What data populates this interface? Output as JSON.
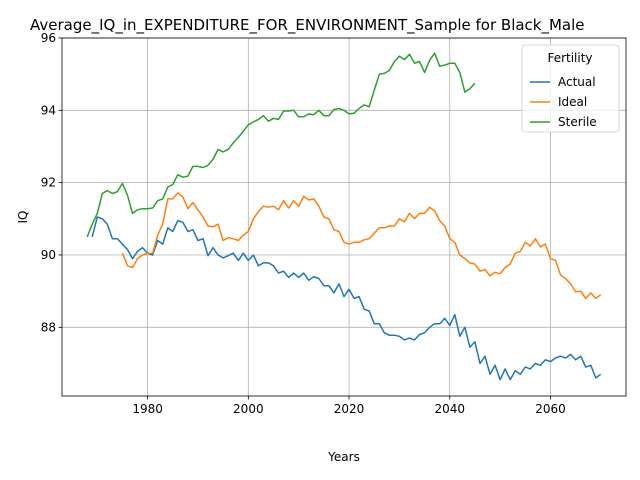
{
  "chart_data": {
    "type": "line",
    "title": "Average_IQ_in_EXPENDITURE_FOR_ENVIRONMENT_Sample for Black_Male",
    "xlabel": "Years",
    "ylabel": "IQ",
    "xlim": [
      1963,
      2075
    ],
    "ylim": [
      86.1,
      96.0
    ],
    "xticks": [
      1980,
      2000,
      2020,
      2040,
      2060
    ],
    "yticks": [
      88,
      90,
      92,
      94,
      96
    ],
    "grid": true,
    "legend": {
      "title": "Fertility",
      "position": "top-right"
    },
    "series": [
      {
        "name": "Actual",
        "color": "#1f77b4",
        "x": [
          1969,
          1970,
          1971,
          1972,
          1973,
          1974,
          1975,
          1976,
          1977,
          1978,
          1979,
          1980,
          1981,
          1982,
          1983,
          1984,
          1985,
          1986,
          1987,
          1988,
          1989,
          1990,
          1991,
          1992,
          1993,
          1994,
          1995,
          1996,
          1997,
          1998,
          1999,
          2000,
          2001,
          2002,
          2003,
          2004,
          2005,
          2006,
          2007,
          2008,
          2009,
          2010,
          2011,
          2012,
          2013,
          2014,
          2015,
          2016,
          2017,
          2018,
          2019,
          2020,
          2021,
          2022,
          2023,
          2024,
          2025,
          2026,
          2027,
          2028,
          2029,
          2030,
          2031,
          2032,
          2033,
          2034,
          2035,
          2036,
          2037,
          2038,
          2039,
          2040,
          2041,
          2042,
          2043,
          2044,
          2045,
          2046,
          2047,
          2048,
          2049,
          2050,
          2051,
          2052,
          2053,
          2054,
          2055,
          2056,
          2057,
          2058,
          2059,
          2060,
          2061,
          2062,
          2063,
          2064,
          2065,
          2066,
          2067,
          2068,
          2069,
          2070
        ],
        "values": [
          90.5,
          91.05,
          91.0,
          90.85,
          90.45,
          90.45,
          90.3,
          90.15,
          89.9,
          90.1,
          90.2,
          90.05,
          90.0,
          90.4,
          90.3,
          90.75,
          90.65,
          90.95,
          90.9,
          90.65,
          90.7,
          90.4,
          90.45,
          89.98,
          90.2,
          90.0,
          89.92,
          89.98,
          90.05,
          89.85,
          90.05,
          89.85,
          90.0,
          89.7,
          89.78,
          89.78,
          89.7,
          89.5,
          89.55,
          89.38,
          89.5,
          89.38,
          89.5,
          89.3,
          89.4,
          89.35,
          89.15,
          89.15,
          88.95,
          89.2,
          88.85,
          89.05,
          88.8,
          88.85,
          88.5,
          88.45,
          88.1,
          88.1,
          87.85,
          87.78,
          87.78,
          87.75,
          87.65,
          87.7,
          87.65,
          87.8,
          87.85,
          88.0,
          88.1,
          88.1,
          88.25,
          88.05,
          88.35,
          87.75,
          88.0,
          87.45,
          87.6,
          87.0,
          87.2,
          86.7,
          86.95,
          86.55,
          86.85,
          86.55,
          86.8,
          86.7,
          86.9,
          86.85,
          87.0,
          86.95,
          87.1,
          87.05,
          87.15,
          87.2,
          87.15,
          87.25,
          87.1,
          87.2,
          86.9,
          86.95,
          86.6,
          86.7
        ]
      },
      {
        "name": "Ideal",
        "color": "#ff7f0e",
        "x": [
          1975,
          1976,
          1977,
          1978,
          1979,
          1980,
          1981,
          1982,
          1983,
          1984,
          1985,
          1986,
          1987,
          1988,
          1989,
          1990,
          1991,
          1992,
          1993,
          1994,
          1995,
          1996,
          1997,
          1998,
          1999,
          2000,
          2001,
          2002,
          2003,
          2004,
          2005,
          2006,
          2007,
          2008,
          2009,
          2010,
          2011,
          2012,
          2013,
          2014,
          2015,
          2016,
          2017,
          2018,
          2019,
          2020,
          2021,
          2022,
          2023,
          2024,
          2025,
          2026,
          2027,
          2028,
          2029,
          2030,
          2031,
          2032,
          2033,
          2034,
          2035,
          2036,
          2037,
          2038,
          2039,
          2040,
          2041,
          2042,
          2043,
          2044,
          2045,
          2046,
          2047,
          2048,
          2049,
          2050,
          2051,
          2052,
          2053,
          2054,
          2055,
          2056,
          2057,
          2058,
          2059,
          2060,
          2061,
          2062,
          2063,
          2064,
          2065,
          2066,
          2067,
          2068,
          2069,
          2070
        ],
        "values": [
          90.05,
          89.7,
          89.65,
          89.9,
          90.0,
          90.05,
          90.05,
          90.55,
          90.85,
          91.55,
          91.55,
          91.72,
          91.6,
          91.28,
          91.45,
          91.25,
          91.05,
          90.8,
          90.78,
          90.85,
          90.4,
          90.48,
          90.45,
          90.4,
          90.55,
          90.65,
          91.0,
          91.2,
          91.35,
          91.32,
          91.35,
          91.25,
          91.5,
          91.3,
          91.5,
          91.35,
          91.62,
          91.52,
          91.55,
          91.35,
          91.05,
          91.0,
          90.7,
          90.65,
          90.35,
          90.3,
          90.35,
          90.35,
          90.42,
          90.45,
          90.6,
          90.75,
          90.75,
          90.8,
          90.8,
          91.0,
          90.92,
          91.15,
          91.0,
          91.15,
          91.15,
          91.32,
          91.22,
          90.95,
          90.8,
          90.45,
          90.35,
          90.0,
          89.9,
          89.78,
          89.75,
          89.55,
          89.6,
          89.42,
          89.52,
          89.48,
          89.65,
          89.75,
          90.05,
          90.1,
          90.35,
          90.25,
          90.45,
          90.22,
          90.3,
          89.9,
          89.85,
          89.45,
          89.35,
          89.2,
          88.98,
          89.0,
          88.8,
          88.95,
          88.8,
          88.9
        ]
      },
      {
        "name": "Sterile",
        "color": "#2ca02c",
        "x": [
          1968,
          1969,
          1970,
          1971,
          1972,
          1973,
          1974,
          1975,
          1976,
          1977,
          1978,
          1979,
          1980,
          1981,
          1982,
          1983,
          1984,
          1985,
          1986,
          1987,
          1988,
          1989,
          1990,
          1991,
          1992,
          1993,
          1994,
          1995,
          1996,
          1997,
          1998,
          1999,
          2000,
          2001,
          2002,
          2003,
          2004,
          2005,
          2006,
          2007,
          2008,
          2009,
          2010,
          2011,
          2012,
          2013,
          2014,
          2015,
          2016,
          2017,
          2018,
          2019,
          2020,
          2021,
          2022,
          2023,
          2024,
          2025,
          2026,
          2027,
          2028,
          2029,
          2030,
          2031,
          2032,
          2033,
          2034,
          2035,
          2036,
          2037,
          2038,
          2039,
          2040,
          2041,
          2042,
          2043,
          2044,
          2045
        ],
        "values": [
          90.5,
          90.85,
          91.15,
          91.7,
          91.78,
          91.7,
          91.75,
          91.98,
          91.65,
          91.15,
          91.25,
          91.28,
          91.28,
          91.3,
          91.5,
          91.55,
          91.88,
          91.95,
          92.22,
          92.15,
          92.18,
          92.45,
          92.45,
          92.42,
          92.48,
          92.65,
          92.92,
          92.85,
          92.92,
          93.1,
          93.25,
          93.42,
          93.6,
          93.68,
          93.75,
          93.85,
          93.7,
          93.78,
          93.75,
          93.98,
          93.98,
          94.0,
          93.82,
          93.82,
          93.9,
          93.88,
          94.0,
          93.85,
          93.85,
          94.02,
          94.05,
          94.0,
          93.9,
          93.92,
          94.05,
          94.15,
          94.1,
          94.55,
          95.0,
          95.02,
          95.1,
          95.35,
          95.5,
          95.4,
          95.55,
          95.3,
          95.35,
          95.05,
          95.38,
          95.58,
          95.22,
          95.25,
          95.3,
          95.3,
          95.05,
          94.5,
          94.6,
          94.75
        ]
      }
    ]
  }
}
